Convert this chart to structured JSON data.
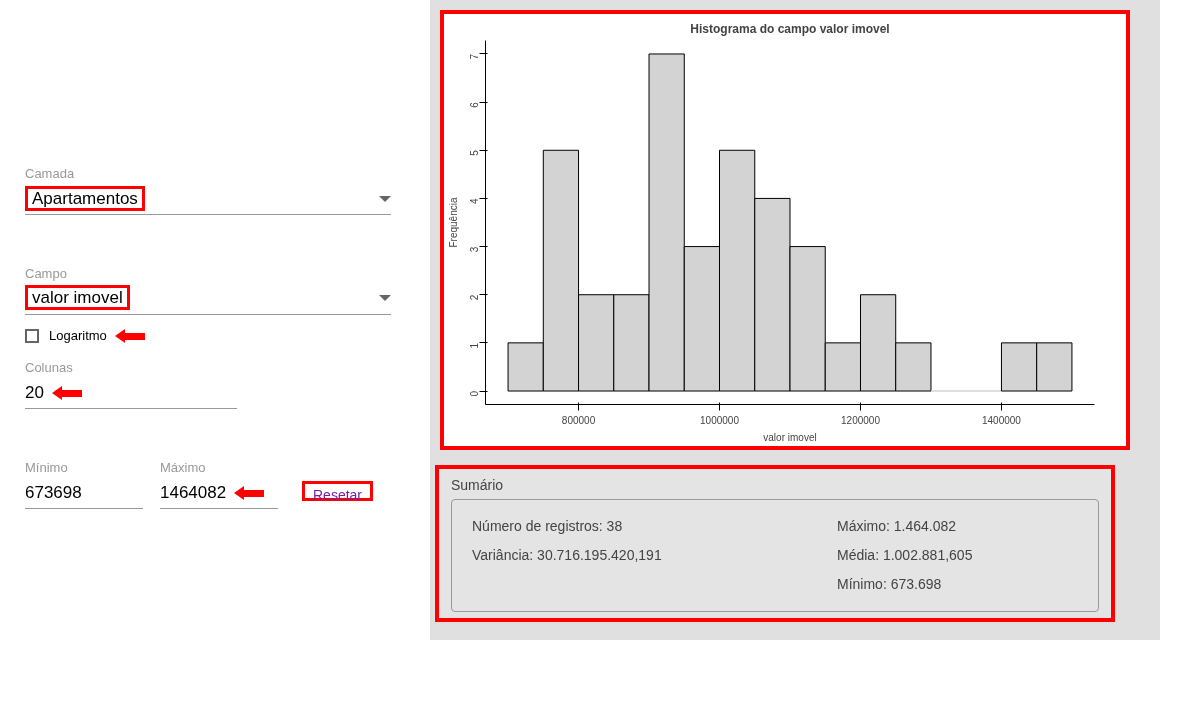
{
  "chart_data": {
    "type": "histogram",
    "title": "Histograma do campo valor imovel",
    "xlabel": "valor imovel",
    "ylabel": "Frequência",
    "bins": [
      700000,
      750000,
      800000,
      850000,
      900000,
      950000,
      1000000,
      1050000,
      1100000,
      1150000,
      1200000,
      1250000,
      1300000,
      1350000,
      1400000,
      1450000,
      1500000
    ],
    "values": [
      1,
      5,
      2,
      2,
      7,
      3,
      5,
      4,
      3,
      1,
      2,
      1,
      0,
      0,
      1,
      1
    ],
    "color": "#d3d3d3",
    "xlim": [
      668000,
      1532000
    ],
    "ylim": [
      -0.28,
      7.28
    ],
    "xticks": [
      800000,
      1000000,
      1200000,
      1400000
    ],
    "yticks": [
      0,
      1,
      2,
      3,
      4,
      5,
      6,
      7
    ],
    "annotations": [
      "Camada",
      "Apartamentos",
      "Campo",
      "valor imovel",
      "Logaritmo",
      "Colunas",
      "20",
      "Mínimo",
      "673698",
      "Máximo",
      "1464082",
      "Resetar",
      "Sumário",
      "Número de registros: 38",
      "Variância: 30.716.195.420,191",
      "Máximo: 1.464.082",
      "Média: 1.002.881,605",
      "Mínimo: 673.698"
    ]
  }
}
